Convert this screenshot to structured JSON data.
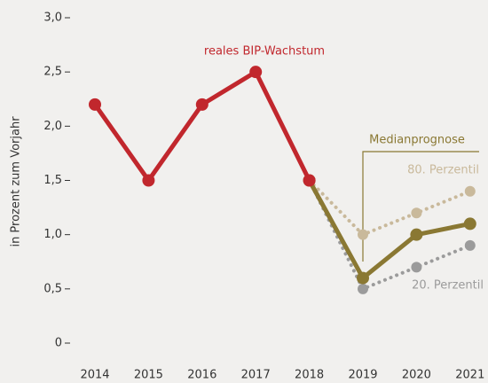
{
  "chart_data": {
    "type": "line",
    "y_label": "in Prozent zum Vorjahr",
    "categories": [
      "2014",
      "2015",
      "2016",
      "2017",
      "2018",
      "2019",
      "2020",
      "2021"
    ],
    "series": [
      {
        "name": "80. Perzentil",
        "color": "#c9b99b",
        "dotted": true,
        "values": [
          null,
          null,
          null,
          null,
          1.5,
          1.0,
          1.2,
          1.4
        ]
      },
      {
        "name": "20. Perzentil",
        "color": "#9b9b9b",
        "dotted": true,
        "values": [
          null,
          null,
          null,
          null,
          1.5,
          0.5,
          0.7,
          0.9
        ]
      },
      {
        "name": "Medianprognose",
        "color": "#8a7833",
        "values": [
          null,
          null,
          null,
          null,
          1.5,
          0.6,
          1.0,
          1.1
        ]
      },
      {
        "name": "reales BIP-Wachstum",
        "color": "#c1272d",
        "values": [
          2.2,
          1.5,
          2.2,
          2.5,
          1.5,
          null,
          null,
          null
        ]
      }
    ],
    "ylim": [
      0,
      3.0
    ],
    "yticks": [
      0,
      {
        "value": 0.5,
        "label": "0,5"
      },
      {
        "value": 1.0,
        "label": "1,0"
      },
      {
        "value": 1.5,
        "label": "1,5"
      },
      {
        "value": 2.0,
        "label": "2,0"
      },
      {
        "value": 2.5,
        "label": "2,5"
      },
      {
        "value": 3.0,
        "label": "3,0"
      }
    ]
  }
}
